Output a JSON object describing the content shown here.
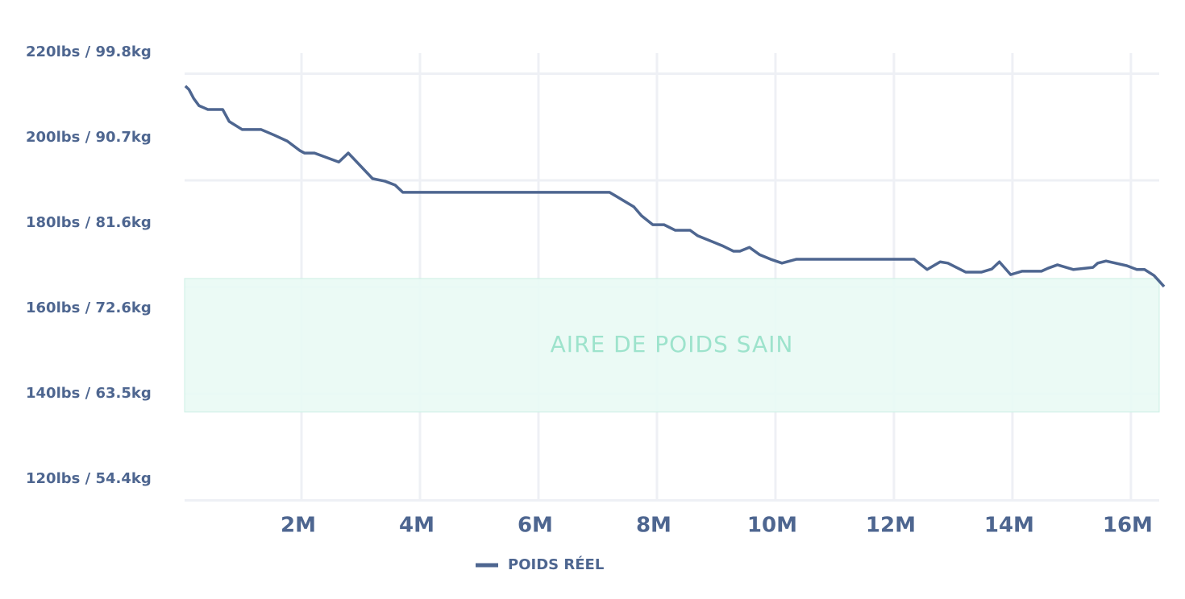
{
  "chart_data": {
    "type": "line",
    "color": "#4e6690",
    "xlim": [
      0,
      16.6
    ],
    "xticks": [
      {
        "value": 2,
        "label": "2M"
      },
      {
        "value": 4,
        "label": "4M"
      },
      {
        "value": 6,
        "label": "6M"
      },
      {
        "value": 8,
        "label": "8M"
      },
      {
        "value": 10,
        "label": "10M"
      },
      {
        "value": 12,
        "label": "12M"
      },
      {
        "value": 14,
        "label": "14M"
      },
      {
        "value": 16,
        "label": "16M"
      }
    ],
    "ylim": [
      115,
      215
    ],
    "yticks": [
      {
        "value": 220,
        "label": "220lbs / 99.8kg"
      },
      {
        "value": 200,
        "label": "200lbs / 90.7kg"
      },
      {
        "value": 180,
        "label": "180lbs / 81.6kg"
      },
      {
        "value": 160,
        "label": "160lbs / 72.6kg"
      },
      {
        "value": 140,
        "label": "140lbs / 63.5kg"
      },
      {
        "value": 120,
        "label": "120lbs / 54.4kg"
      }
    ],
    "grid": true,
    "grid_y": [
      115,
      140,
      165,
      190,
      215
    ],
    "band": {
      "label": "AIRE DE POIDS SAIN",
      "from": 135.7,
      "to": 167,
      "color": "#e9faf5",
      "text_color": "#9de3cc"
    },
    "series": [
      {
        "name": "POIDS RÉEL",
        "color": "#4e6690",
        "x": [
          0.04,
          0.1,
          0.18,
          0.27,
          0.42,
          0.67,
          0.78,
          1.0,
          1.32,
          1.54,
          1.76,
          1.97,
          2.05,
          2.22,
          2.63,
          2.79,
          3.2,
          3.41,
          3.58,
          3.71,
          7.2,
          7.61,
          7.74,
          7.93,
          8.12,
          8.31,
          8.56,
          8.69,
          9.1,
          9.29,
          9.4,
          9.56,
          9.73,
          9.92,
          10.11,
          10.35,
          12.34,
          12.56,
          12.78,
          12.91,
          13.21,
          13.48,
          13.65,
          13.78,
          13.97,
          14.16,
          14.49,
          14.6,
          14.76,
          15.03,
          15.36,
          15.44,
          15.58,
          15.93,
          16.1,
          16.23,
          16.39,
          16.56
        ],
        "values": [
          212.1,
          211.3,
          209.2,
          207.5,
          206.6,
          206.6,
          203.8,
          201.9,
          201.9,
          200.6,
          199.2,
          197.0,
          196.4,
          196.4,
          194.3,
          196.4,
          190.4,
          189.8,
          188.9,
          187.2,
          187.2,
          183.8,
          181.7,
          179.6,
          179.6,
          178.3,
          178.3,
          177.0,
          174.7,
          173.4,
          173.4,
          174.3,
          172.6,
          171.5,
          170.6,
          171.5,
          171.5,
          169.1,
          170.9,
          170.6,
          168.5,
          168.5,
          169.2,
          170.9,
          167.9,
          168.7,
          168.7,
          169.4,
          170.2,
          169.1,
          169.6,
          170.6,
          171.1,
          170.0,
          169.1,
          169.1,
          167.7,
          165.1
        ]
      }
    ]
  }
}
